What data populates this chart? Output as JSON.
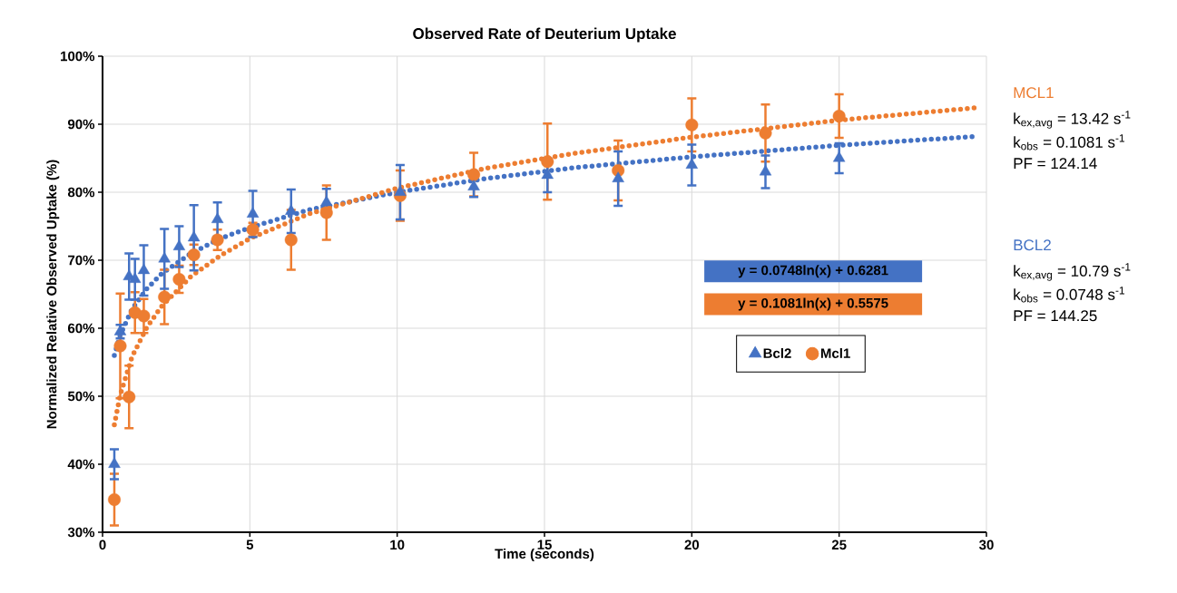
{
  "chart_data": {
    "type": "scatter",
    "title": "Observed Rate of Deuterium Uptake",
    "xlabel": "Time (seconds)",
    "ylabel": "Normalized Relative Observed Uptake (%)",
    "xlim": [
      0,
      30
    ],
    "xticks": [
      0,
      5,
      10,
      15,
      20,
      25,
      30
    ],
    "ylim": [
      30,
      100
    ],
    "yticks": [
      {
        "value": 30,
        "label": "30%"
      },
      {
        "value": 40,
        "label": "40%"
      },
      {
        "value": 50,
        "label": "50%"
      },
      {
        "value": 60,
        "label": "60%"
      },
      {
        "value": 70,
        "label": "70%"
      },
      {
        "value": 80,
        "label": "80%"
      },
      {
        "value": 90,
        "label": "90%"
      },
      {
        "value": 100,
        "label": "100%"
      }
    ],
    "grid": true,
    "legend": "right",
    "series": [
      {
        "name": "Bcl2",
        "marker": "triangle",
        "color": "#4472c4",
        "x": [
          0.4,
          0.6,
          0.9,
          1.1,
          1.4,
          2.1,
          2.6,
          3.1,
          3.9,
          5.1,
          6.4,
          7.6,
          10.1,
          12.6,
          15.1,
          17.5,
          20,
          22.5,
          25
        ],
        "values": [
          40,
          59.5,
          67.6,
          67.2,
          68.5,
          70.2,
          72,
          73.3,
          76,
          76.8,
          77.2,
          78.5,
          80,
          80.8,
          82.5,
          82,
          84,
          83,
          85
        ],
        "errors": [
          2.2,
          1,
          3.4,
          3,
          3.7,
          4.4,
          3,
          4.8,
          2.5,
          3.4,
          3.2,
          2,
          4,
          1.5,
          2.5,
          4,
          3,
          2.4,
          2.2
        ]
      },
      {
        "name": "Mcl1",
        "marker": "circle",
        "color": "#ed7d31",
        "x": [
          0.4,
          0.6,
          0.9,
          1.1,
          1.4,
          2.1,
          2.6,
          3.1,
          3.9,
          5.1,
          6.4,
          7.6,
          10.1,
          12.6,
          15.1,
          17.5,
          20,
          22.5,
          25
        ],
        "values": [
          34.8,
          57.4,
          49.9,
          62.3,
          61.8,
          64.6,
          67.2,
          70.8,
          73,
          74.5,
          73,
          77,
          79.5,
          82.6,
          84.5,
          83.2,
          89.9,
          88.7,
          91.2
        ],
        "errors": [
          3.8,
          7.7,
          4.6,
          3,
          2.5,
          4,
          2,
          1.5,
          1.5,
          1,
          4.4,
          4,
          3.7,
          3.2,
          5.6,
          4.4,
          3.9,
          4.2,
          3.2
        ]
      },
      {
        "type": "line",
        "line_style": "dotted",
        "marker": "none",
        "color": "#4472c4",
        "x": [
          0.4,
          0.6,
          1,
          1.5,
          2,
          3,
          4,
          5,
          7,
          10,
          13,
          16,
          20,
          25,
          29.6
        ],
        "values": [
          56,
          59,
          62.8,
          65.8,
          68,
          71,
          73.2,
          74.8,
          77.4,
          80,
          82,
          83.6,
          85.2,
          86.9,
          88.2
        ]
      },
      {
        "type": "line",
        "line_style": "dotted",
        "marker": "none",
        "color": "#ed7d31",
        "x": [
          0.4,
          0.6,
          1,
          1.5,
          2,
          3,
          4,
          5,
          7,
          10,
          13,
          16,
          20,
          25,
          29.6
        ],
        "values": [
          45.8,
          50.2,
          55.8,
          60.1,
          63.2,
          67.6,
          70.7,
          73.2,
          76.8,
          80.6,
          83.5,
          85.7,
          88.1,
          90.6,
          92.4
        ]
      }
    ],
    "annotations": [
      "y = 0.0748ln(x) + 0.6281",
      "y = 0.1081ln(x) + 0.5575",
      "MCL1",
      "k$_{ex,avg}$ = 13.42 s$^{-1}$",
      "k$_{obs}$ = 0.1081 s$^{-1}$",
      "PF = 124.14",
      "BCL2",
      "k$_{ex,avg}$ = 10.79 s$^{-1}$",
      "k$_{obs}$ = 0.0748 s$^{-1}$",
      "PF = 144.25"
    ]
  }
}
